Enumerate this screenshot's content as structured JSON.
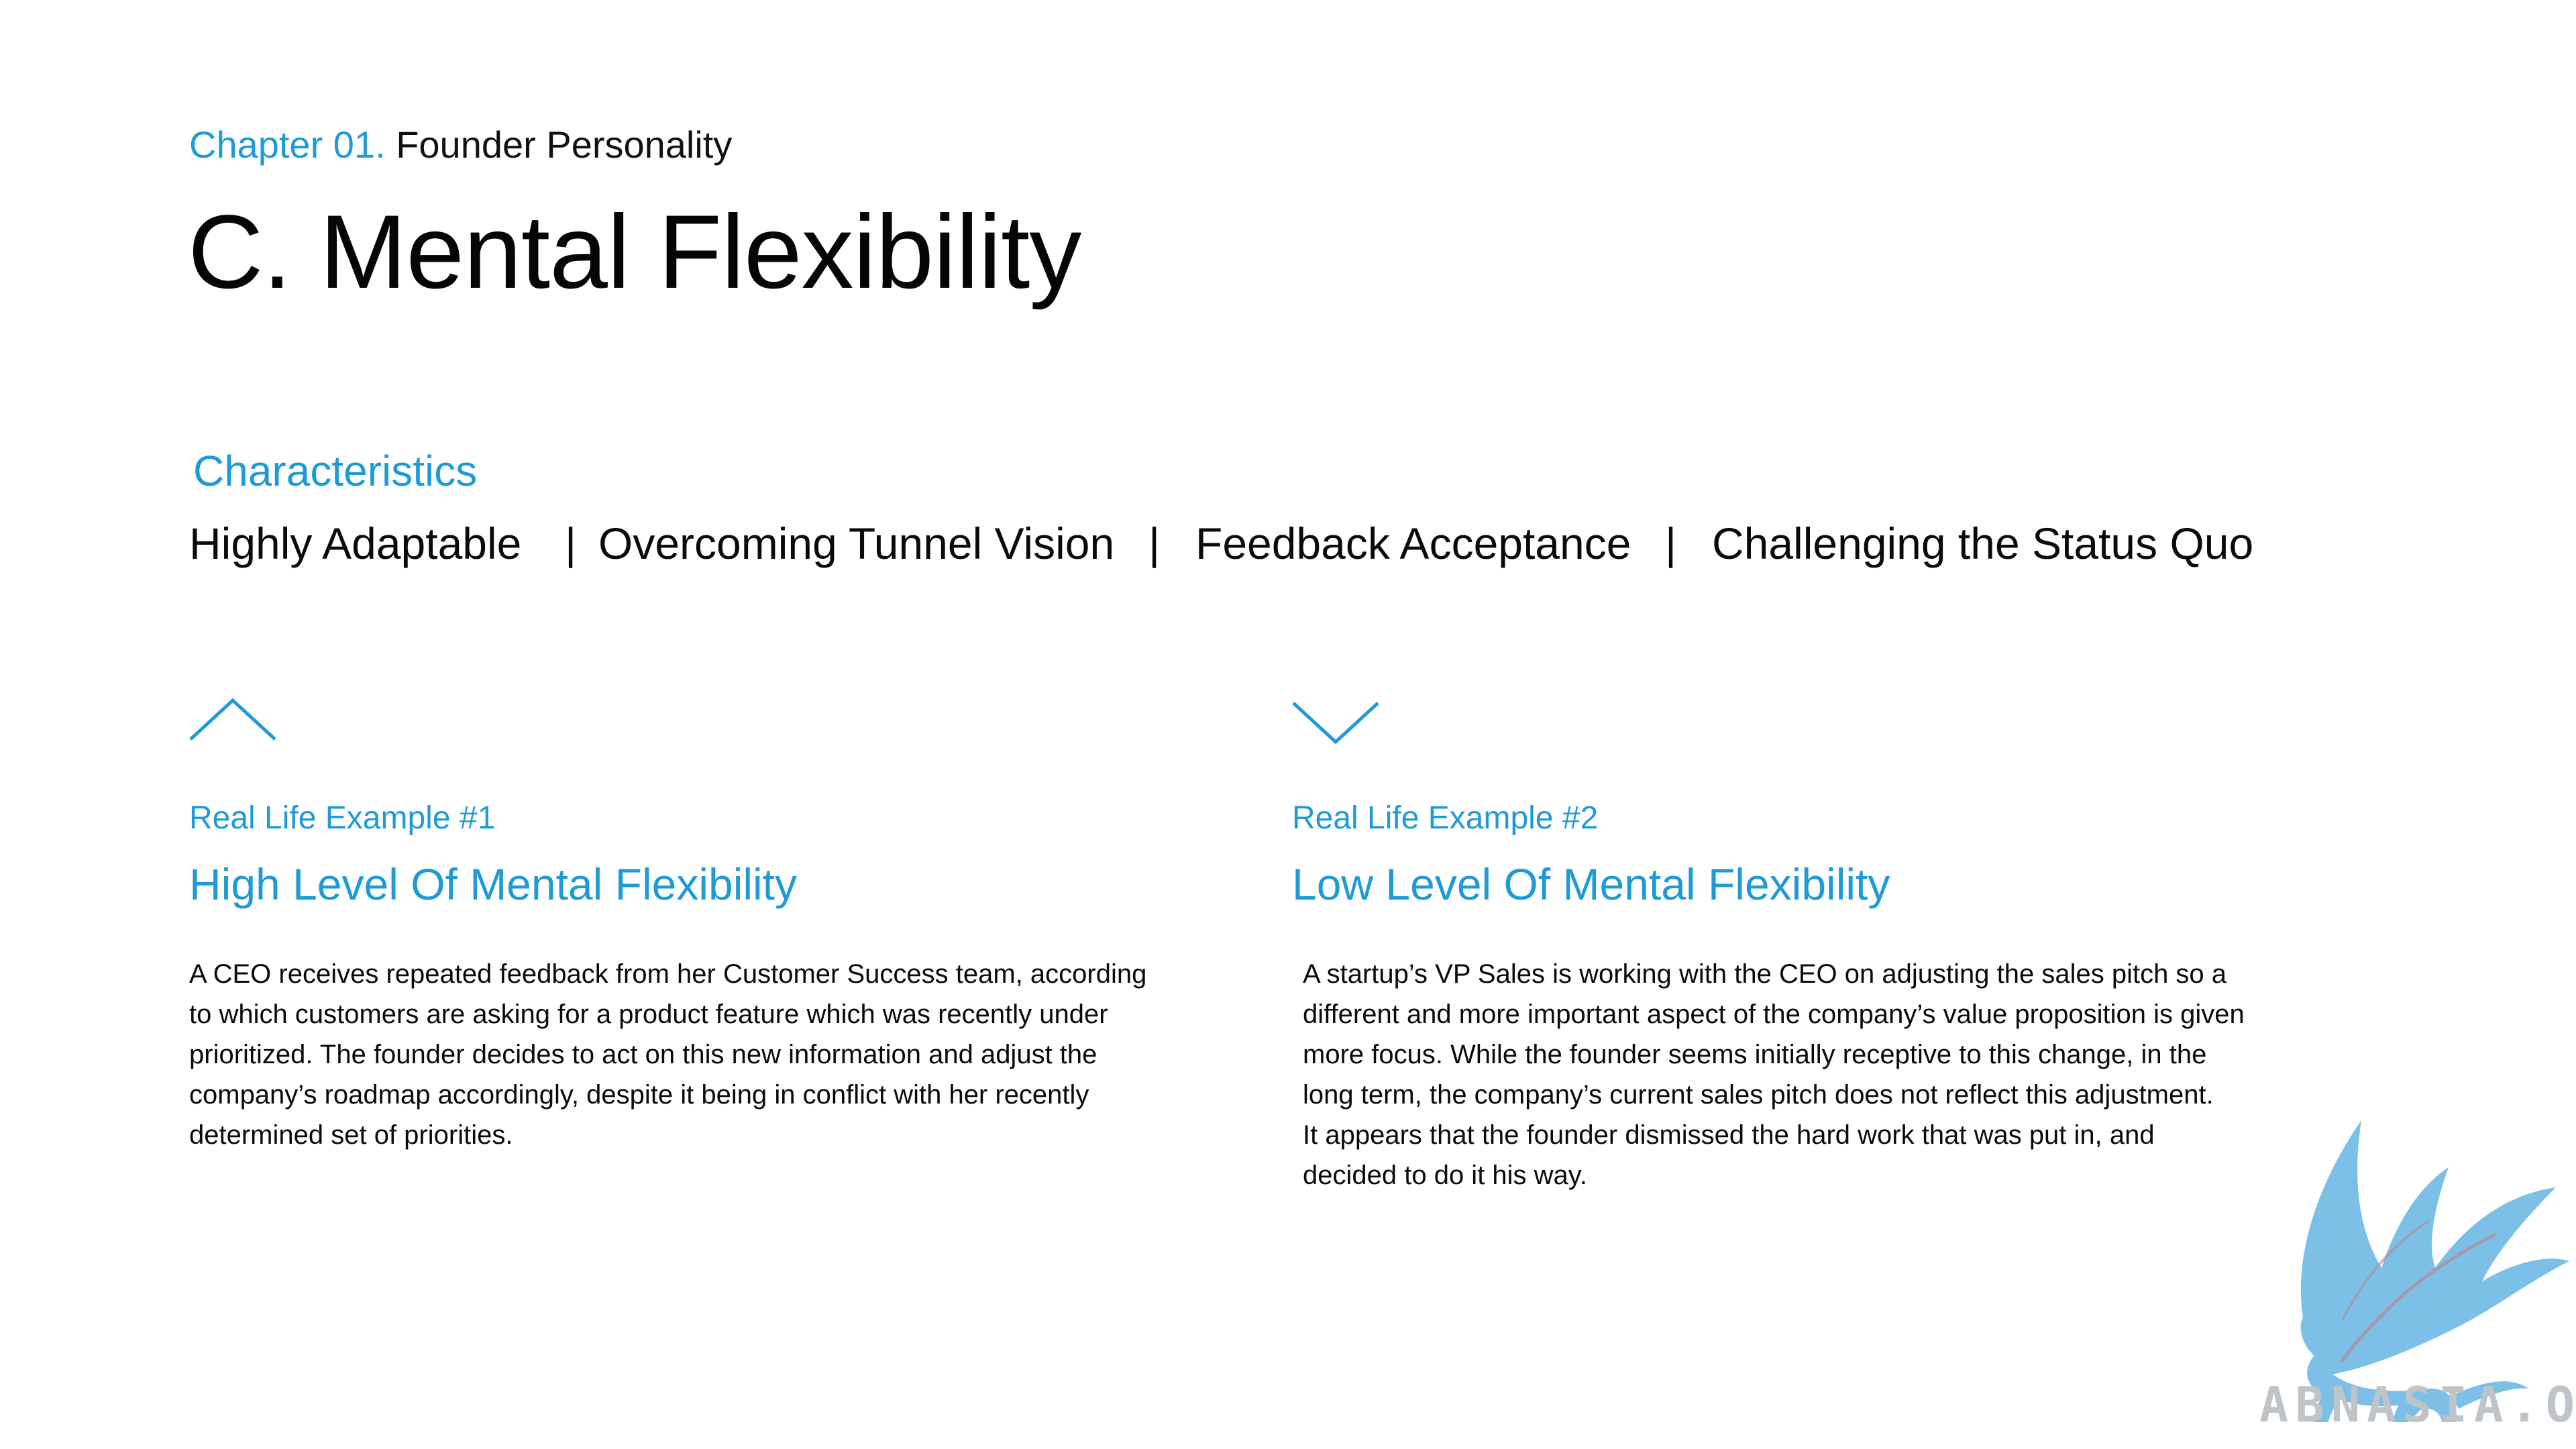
{
  "header": {
    "chapter_number": "Chapter 01.",
    "chapter_name": "Founder Personality",
    "title": "C. Mental Flexibility"
  },
  "characteristics": {
    "heading": "Characteristics",
    "items": [
      "Highly Adaptable",
      "|",
      "Overcoming Tunnel Vision",
      "|",
      "Feedback Acceptance",
      "|",
      "Challenging the Status Quo"
    ]
  },
  "examples": [
    {
      "icon": "chevron-up-icon",
      "label": "Real Life Example #1",
      "title": "High Level Of Mental Flexibility",
      "body": "A CEO receives repeated feedback from her Customer Success team, according\nto which customers are asking for a product feature which was recently under\nprioritized. The founder decides to act on this new information and adjust the\ncompany’s roadmap accordingly, despite it being in conflict with her recently\ndetermined set of priorities."
    },
    {
      "icon": "chevron-down-icon",
      "label": "Real Life Example #2",
      "title": "Low Level Of Mental Flexibility",
      "body": "A startup’s VP Sales is working with the CEO on adjusting the sales pitch so a\ndifferent and more important aspect of the company’s value proposition is given\nmore focus. While the founder seems initially receptive to this change, in the\nlong term, the company’s current sales pitch does not reflect this adjustment.\nIt appears that the founder dismissed the hard work that was put in, and\ndecided to do it his way."
    }
  ],
  "watermark": {
    "text": "ABNASIA.ORG",
    "icon": "griffin-logo-icon"
  },
  "colors": {
    "accent": "#1e9ad6",
    "text": "#0a0a0a",
    "logo_blue": "#7cc0e8",
    "logo_gray": "#bfc4c9"
  }
}
